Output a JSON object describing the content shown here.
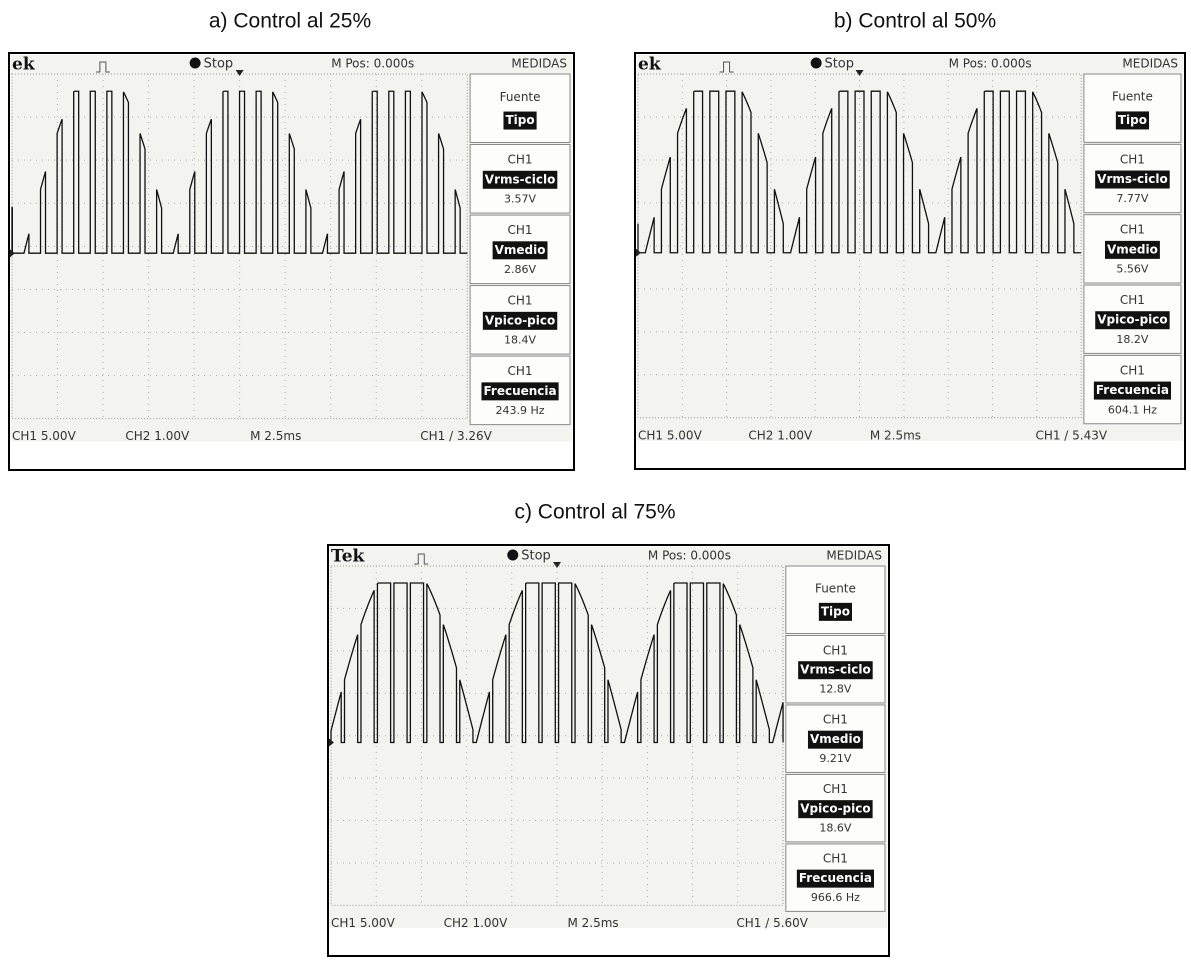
{
  "panels": [
    {
      "caption": "a) Control al 25%",
      "header": {
        "brand": "ek",
        "trigger": "Stop",
        "position": "M Pos: 0.000s",
        "menu": "MEDIDAS"
      },
      "menu": {
        "source": "Fuente",
        "type": "Tipo",
        "measurements": [
          {
            "channel": "CH1",
            "name": "Vrms-ciclo",
            "value": "3.57V"
          },
          {
            "channel": "CH1",
            "name": "Vmedio",
            "value": "2.86V"
          },
          {
            "channel": "CH1",
            "name": "Vpico-pico",
            "value": "18.4V"
          },
          {
            "channel": "CH1",
            "name": "Frecuencia",
            "value": "243.9 Hz"
          }
        ]
      },
      "footer": {
        "ch1": "CH1 5.00V",
        "ch2": "CH2 1.00V",
        "time": "M 2.5ms",
        "trigger": "CH1 / 3.26V"
      }
    },
    {
      "caption": "b) Control al 50%",
      "header": {
        "brand": "ek",
        "trigger": "Stop",
        "position": "M Pos: 0.000s",
        "menu": "MEDIDAS"
      },
      "menu": {
        "source": "Fuente",
        "type": "Tipo",
        "measurements": [
          {
            "channel": "CH1",
            "name": "Vrms-ciclo",
            "value": "7.77V"
          },
          {
            "channel": "CH1",
            "name": "Vmedio",
            "value": "5.56V"
          },
          {
            "channel": "CH1",
            "name": "Vpico-pico",
            "value": "18.2V"
          },
          {
            "channel": "CH1",
            "name": "Frecuencia",
            "value": "604.1 Hz"
          }
        ]
      },
      "footer": {
        "ch1": "CH1 5.00V",
        "ch2": "CH2 1.00V",
        "time": "M 2.5ms",
        "trigger": "CH1 / 5.43V"
      }
    },
    {
      "caption": "c) Control al 75%",
      "header": {
        "brand": "Tek",
        "trigger": "Stop",
        "position": "M Pos: 0.000s",
        "menu": "MEDIDAS"
      },
      "menu": {
        "source": "Fuente",
        "type": "Tipo",
        "measurements": [
          {
            "channel": "CH1",
            "name": "Vrms-ciclo",
            "value": "12.8V"
          },
          {
            "channel": "CH1",
            "name": "Vmedio",
            "value": "9.21V"
          },
          {
            "channel": "CH1",
            "name": "Vpico-pico",
            "value": "18.6V"
          },
          {
            "channel": "CH1",
            "name": "Frecuencia",
            "value": "966.6 Hz"
          }
        ]
      },
      "footer": {
        "ch1": "CH1 5.00V",
        "ch2": "CH2 1.00V",
        "time": "M 2.5ms",
        "trigger": "CH1 / 5.60V"
      }
    }
  ]
}
